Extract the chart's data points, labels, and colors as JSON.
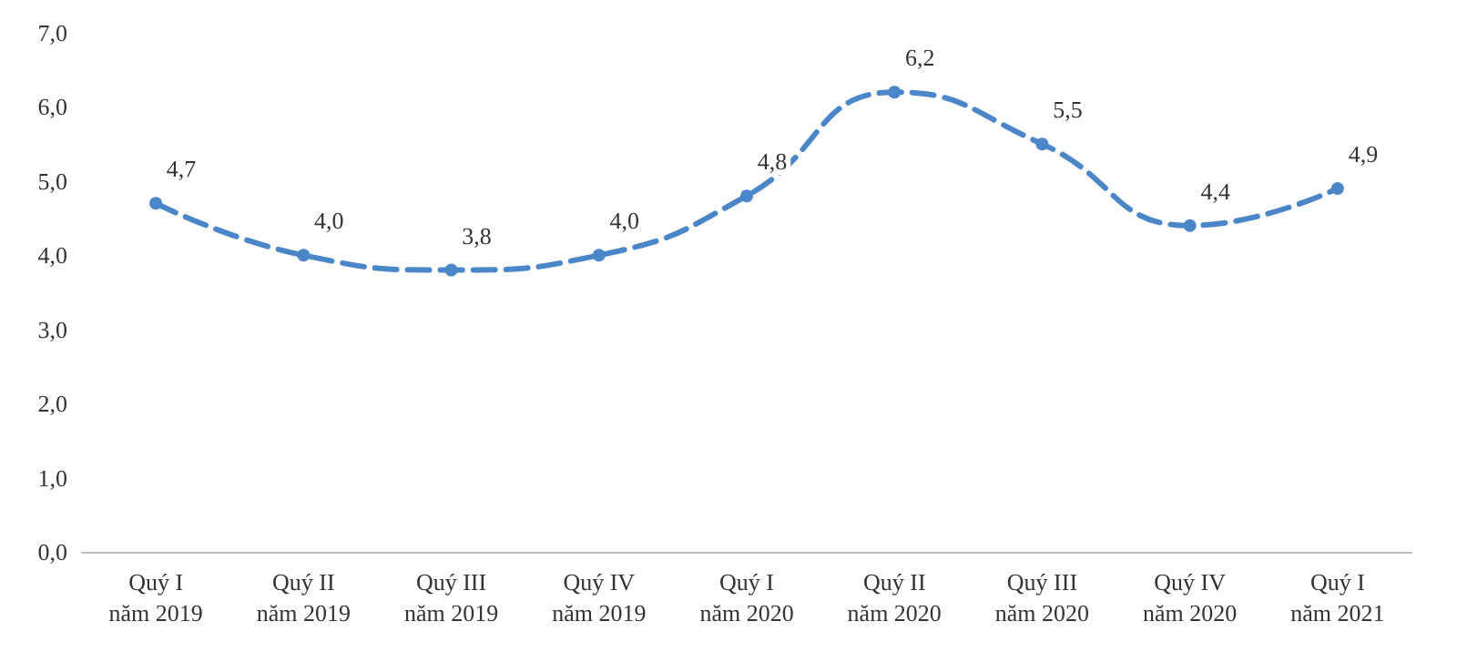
{
  "chart_data": {
    "type": "line",
    "categories": [
      "Quý I\nnăm 2019",
      "Quý II\nnăm 2019",
      "Quý III\nnăm 2019",
      "Quý IV\nnăm 2019",
      "Quý I\nnăm 2020",
      "Quý II\nnăm 2020",
      "Quý III\nnăm 2020",
      "Quý IV\nnăm 2020",
      "Quý I\nnăm 2021"
    ],
    "series": [
      {
        "color": "#4a86c8",
        "values": [
          4.7,
          4.0,
          3.8,
          4.0,
          4.8,
          6.2,
          5.5,
          4.4,
          4.9
        ],
        "value_labels": [
          "4,7",
          "4,0",
          "3,8",
          "4,0",
          "4,8",
          "6,2",
          "5,5",
          "4,4",
          "4,9"
        ]
      }
    ],
    "ylim": [
      0,
      7
    ],
    "yticks": [
      {
        "value": 0,
        "label": "0,0"
      },
      {
        "value": 1,
        "label": "1,0"
      },
      {
        "value": 2,
        "label": "2,0"
      },
      {
        "value": 3,
        "label": "3,0"
      },
      {
        "value": 4,
        "label": "4,0"
      },
      {
        "value": 5,
        "label": "5,0"
      },
      {
        "value": 6,
        "label": "6,0"
      },
      {
        "value": 7,
        "label": "7,0"
      }
    ],
    "grid": false,
    "marker": "circle",
    "line_style": "dashed"
  }
}
